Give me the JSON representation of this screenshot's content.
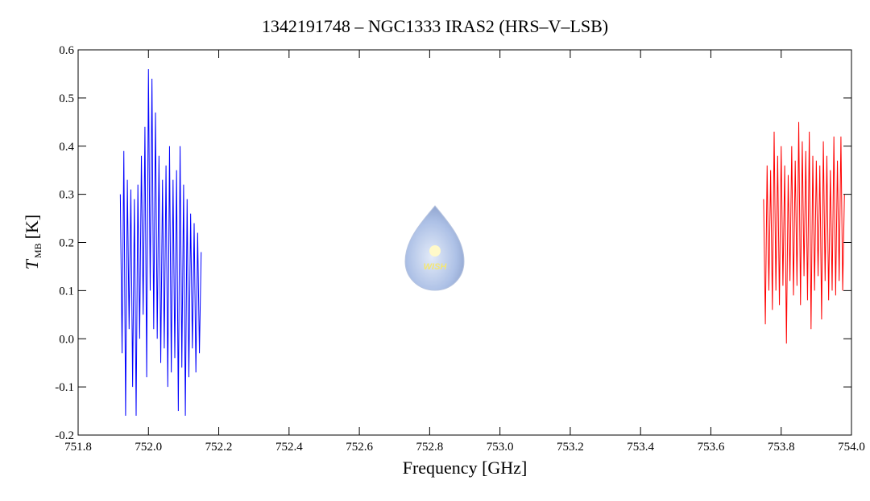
{
  "chart_data": {
    "type": "line",
    "title": "1342191748 – NGC1333 IRAS2 (HRS–V–LSB)",
    "xlabel": "Frequency [GHz]",
    "ylabel": {
      "main": "T",
      "subscript": "MB",
      "unit": "[K]"
    },
    "logo_text": "WISH",
    "xlim": [
      751.8,
      754.0
    ],
    "ylim": [
      -0.2,
      0.6
    ],
    "xticks": [
      751.8,
      {
        "value": 752.0,
        "label": "752.0"
      },
      752.2,
      752.4,
      752.6,
      752.8,
      {
        "value": 753.0,
        "label": "753.0"
      },
      753.2,
      753.4,
      753.6,
      753.8,
      {
        "value": 754.0,
        "label": "754.0"
      }
    ],
    "yticks": [
      -0.2,
      -0.1,
      {
        "value": 0,
        "label": "0.0"
      },
      0.1,
      0.2,
      0.3,
      0.4,
      0.5,
      0.6
    ],
    "series": [
      {
        "color": "#0000ff",
        "x": [
          751.92,
          751.925,
          751.93,
          751.935,
          751.94,
          751.945,
          751.95,
          751.955,
          751.96,
          751.965,
          751.97,
          751.975,
          751.98,
          751.985,
          751.99,
          751.995,
          752.0,
          752.005,
          752.01,
          752.015,
          752.02,
          752.025,
          752.03,
          752.035,
          752.04,
          752.045,
          752.05,
          752.055,
          752.06,
          752.065,
          752.07,
          752.075,
          752.08,
          752.085,
          752.09,
          752.095,
          752.1,
          752.105,
          752.11,
          752.115,
          752.12,
          752.125,
          752.13,
          752.135,
          752.14,
          752.145,
          752.15
        ],
        "values": [
          0.3,
          -0.03,
          0.39,
          -0.16,
          0.33,
          0.02,
          0.31,
          -0.1,
          0.29,
          -0.16,
          0.32,
          0.0,
          0.38,
          0.05,
          0.44,
          -0.08,
          0.56,
          0.1,
          0.54,
          0.02,
          0.47,
          0.0,
          0.38,
          -0.05,
          0.33,
          -0.02,
          0.36,
          -0.1,
          0.4,
          -0.07,
          0.33,
          -0.04,
          0.35,
          -0.15,
          0.4,
          -0.06,
          0.32,
          -0.16,
          0.29,
          -0.08,
          0.26,
          -0.02,
          0.24,
          -0.07,
          0.22,
          -0.03,
          0.18
        ]
      },
      {
        "color": "#ff0000",
        "x": [
          753.75,
          753.755,
          753.76,
          753.765,
          753.77,
          753.775,
          753.78,
          753.785,
          753.79,
          753.795,
          753.8,
          753.805,
          753.81,
          753.815,
          753.82,
          753.825,
          753.83,
          753.835,
          753.84,
          753.845,
          753.85,
          753.855,
          753.86,
          753.865,
          753.87,
          753.875,
          753.88,
          753.885,
          753.89,
          753.895,
          753.9,
          753.905,
          753.91,
          753.915,
          753.92,
          753.925,
          753.93,
          753.935,
          753.94,
          753.945,
          753.95,
          753.955,
          753.96,
          753.965,
          753.97,
          753.975,
          753.98
        ],
        "values": [
          0.29,
          0.03,
          0.36,
          0.1,
          0.35,
          0.06,
          0.43,
          0.1,
          0.38,
          0.07,
          0.4,
          0.11,
          0.36,
          -0.01,
          0.34,
          0.12,
          0.4,
          0.09,
          0.37,
          0.11,
          0.45,
          0.07,
          0.41,
          0.13,
          0.39,
          0.08,
          0.43,
          0.02,
          0.38,
          0.1,
          0.37,
          0.13,
          0.36,
          0.04,
          0.41,
          0.12,
          0.38,
          0.08,
          0.35,
          0.1,
          0.42,
          0.09,
          0.37,
          0.12,
          0.42,
          0.1,
          0.3
        ]
      }
    ]
  }
}
